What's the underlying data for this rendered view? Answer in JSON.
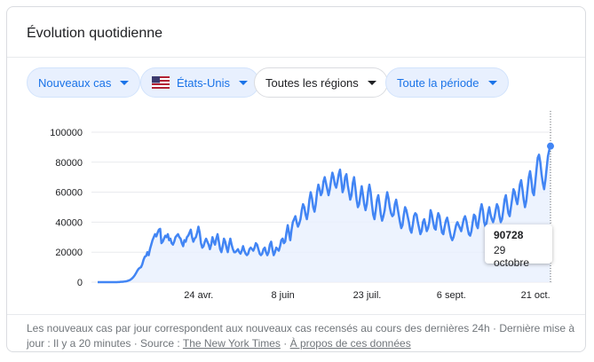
{
  "card": {
    "title": "Évolution quotidienne"
  },
  "filters": {
    "metric": "Nouveaux cas",
    "country": "États-Unis",
    "region": "Toutes les régions",
    "period": "Toute la période"
  },
  "chart_data": {
    "type": "area",
    "title": "",
    "xlabel": "",
    "ylabel": "",
    "ylim": [
      0,
      100000
    ],
    "y_ticks": [
      0,
      20000,
      40000,
      60000,
      80000,
      100000
    ],
    "y_tick_labels": [
      "0",
      "20000",
      "40000",
      "60000",
      "80000",
      "100000"
    ],
    "x_ticks": [
      "24 avr.",
      "8 juin",
      "23 juil.",
      "6 sept.",
      "21 oct."
    ],
    "x_tick_days": [
      54,
      99,
      144,
      189,
      234
    ],
    "x_range_days": [
      0,
      242
    ],
    "series": [
      {
        "values": [
          0,
          0,
          0,
          0,
          0,
          0,
          0,
          0,
          0,
          0,
          0,
          0,
          0,
          0,
          0,
          0,
          100,
          100,
          200,
          200,
          300,
          400,
          500,
          700,
          1000,
          1300,
          1800,
          2500,
          3400,
          4500,
          5900,
          7500,
          8800,
          9500,
          10000,
          12000,
          15000,
          17000,
          17500,
          20000,
          18000,
          22000,
          25000,
          28000,
          30000,
          32000,
          30500,
          33000,
          35000,
          35500,
          26000,
          27000,
          29000,
          31000,
          30000,
          32000,
          28000,
          29000,
          26000,
          25000,
          27000,
          30000,
          31000,
          32000,
          30000,
          29000,
          26000,
          24000,
          28000,
          27000,
          30000,
          31000,
          33000,
          35000,
          30000,
          27000,
          29000,
          30000,
          33000,
          37000,
          33000,
          26000,
          23000,
          24000,
          27000,
          29000,
          27000,
          25000,
          22000,
          25000,
          30000,
          27000,
          25000,
          29000,
          32000,
          27000,
          22000,
          20000,
          24000,
          29000,
          27000,
          23000,
          20000,
          25000,
          29000,
          25000,
          22000,
          20000,
          20000,
          21000,
          22000,
          20000,
          19000,
          21000,
          24000,
          21000,
          19000,
          18000,
          19000,
          22000,
          23000,
          22000,
          21000,
          23000,
          26000,
          25000,
          22000,
          19000,
          18000,
          19000,
          22000,
          23000,
          20000,
          18000,
          20000,
          25000,
          27000,
          22000,
          18000,
          20000,
          23000,
          22000,
          21000,
          24000,
          28000,
          29000,
          26000,
          27000,
          33000,
          38000,
          33000,
          28000,
          35000,
          40000,
          42000,
          44000,
          40000,
          37000,
          39000,
          42000,
          48000,
          52000,
          50000,
          45000,
          42000,
          47000,
          55000,
          60000,
          56000,
          50000,
          47000,
          52000,
          60000,
          65000,
          62000,
          58000,
          60000,
          67000,
          70000,
          66000,
          62000,
          58000,
          62000,
          68000,
          73000,
          70000,
          65000,
          63000,
          67000,
          72000,
          75000,
          68000,
          60000,
          63000,
          70000,
          72000,
          65000,
          60000,
          55000,
          58000,
          66000,
          70000,
          63000,
          55000,
          50000,
          52000,
          58000,
          64000,
          58000,
          52000,
          48000,
          52000,
          60000,
          65000,
          60000,
          52000,
          45000,
          42000,
          48000,
          55000,
          58000,
          52000,
          45000,
          41000,
          44000,
          48000,
          55000,
          60000,
          56000,
          50000,
          46000,
          44000,
          45000,
          52000,
          55000,
          50000,
          45000,
          40000,
          36000,
          38000,
          45000,
          50000,
          48000,
          44000,
          40000,
          35000,
          33000,
          38000,
          44000,
          46000,
          45000,
          40000,
          36000,
          32000,
          34000,
          40000,
          42000,
          38000,
          34000,
          36000,
          40000,
          48000,
          45000,
          40000,
          36000,
          35000,
          42000,
          46000,
          44000,
          38000,
          33000,
          32000,
          37000,
          41000,
          43000,
          39000,
          34000,
          30000,
          28000,
          30000,
          34000,
          38000,
          40000,
          38000,
          36000,
          34000,
          38000,
          42000,
          44000,
          41000,
          36000,
          32000,
          31000,
          34000,
          40000,
          45000,
          44000,
          38000,
          36000,
          42000,
          48000,
          52000,
          48000,
          40000,
          37000,
          40000,
          46000,
          50000,
          45000,
          42000,
          40000,
          43000,
          48000,
          52000,
          50000,
          44000,
          40000,
          42000,
          48000,
          55000,
          58000,
          52000,
          46000,
          44000,
          50000,
          56000,
          62000,
          60000,
          55000,
          52000,
          58000,
          65000,
          68000,
          62000,
          55000,
          50000,
          54000,
          62000,
          70000,
          74000,
          68000,
          60000,
          58000,
          66000,
          75000,
          83000,
          85000,
          80000,
          72000,
          66000,
          62000,
          68000,
          76000,
          84000,
          88000,
          90728
        ],
        "last_value": 90728
      }
    ],
    "tooltip": {
      "value": "90728",
      "date": "29 octobre"
    },
    "colors": {
      "line": "#4285f4",
      "area": "#e8f0fe"
    }
  },
  "footer": {
    "text": "Les nouveaux cas par jour correspondent aux nouveaux cas recensés au cours des dernières 24h · Dernière mise à jour : Il y a 20 minutes  ·  Source :",
    "source_link": "The New York Times",
    "sep": " · ",
    "about_link": "À propos de ces données"
  }
}
